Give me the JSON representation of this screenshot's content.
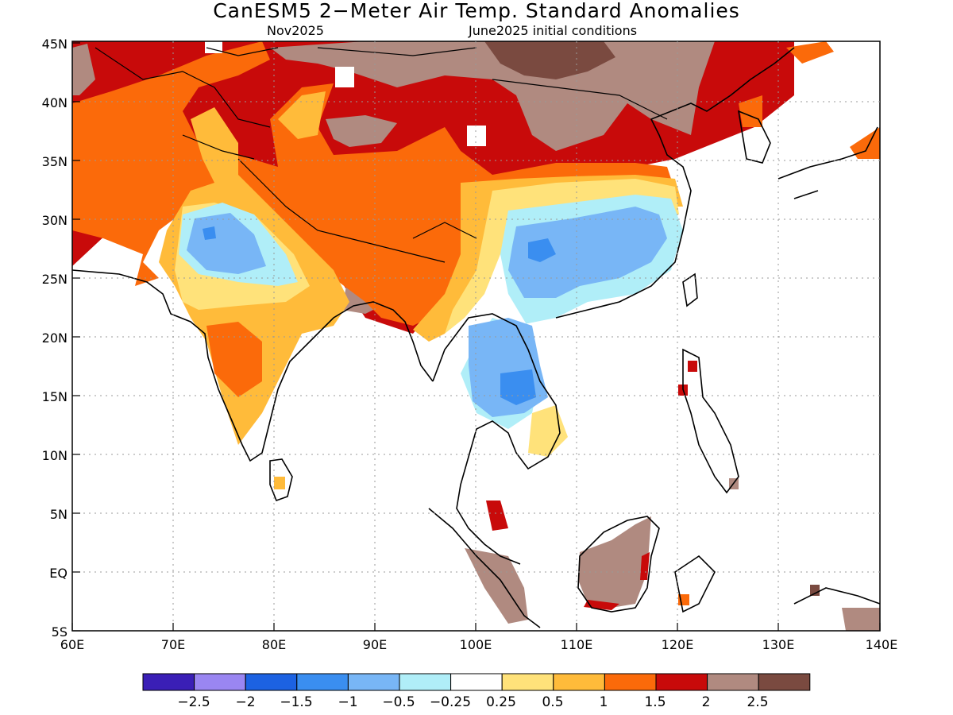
{
  "title": "CanESM5 2−Meter Air Temp. Standard Anomalies",
  "valid_month": "Nov2025",
  "init_conditions": "June2025 initial conditions",
  "lat_labels": [
    "45N",
    "40N",
    "35N",
    "30N",
    "25N",
    "20N",
    "15N",
    "10N",
    "5N",
    "EQ",
    "5S"
  ],
  "lon_labels": [
    "60E",
    "70E",
    "80E",
    "90E",
    "100E",
    "110E",
    "120E",
    "130E",
    "140E"
  ],
  "colorbar": {
    "colors": [
      "#3a1fb6",
      "#9a86f2",
      "#1c62e2",
      "#3a8ef0",
      "#78b6f6",
      "#b0eef8",
      "#ffffff",
      "#ffe27a",
      "#ffbb3a",
      "#fb6a0a",
      "#c80a0a",
      "#b08a80",
      "#7a4a40"
    ],
    "labels": [
      "−2.5",
      "−2",
      "−1.5",
      "−1",
      "−0.5",
      "−0.25",
      "0.25",
      "0.5",
      "1",
      "1.5",
      "2",
      "2.5"
    ]
  },
  "map_palette": {
    "brown": "#b08a80",
    "dark_brown": "#7a4a40",
    "dark_red": "#c80a0a",
    "red_orange": "#fb6a0a",
    "orange": "#ffbb3a",
    "yellow": "#ffe27a",
    "light_cyan": "#b0eef8",
    "light_blue": "#78b6f6",
    "blue": "#3a8ef0"
  }
}
